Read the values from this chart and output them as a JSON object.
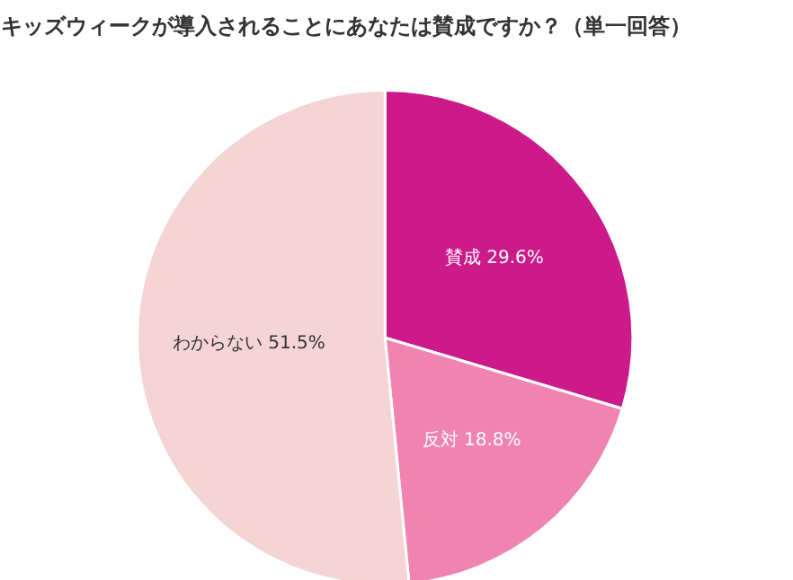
{
  "chart_data": {
    "type": "pie",
    "title": "キッズウィークが導入されることにあなたは賛成ですか？（単一回答）",
    "categories": [
      "賛成",
      "反対",
      "わからない"
    ],
    "values": [
      29.6,
      18.8,
      51.5
    ],
    "value_labels": [
      "29.6%",
      "18.8%",
      "51.5%"
    ],
    "colors": [
      "#cc1a8a",
      "#f083b0",
      "#f4d4d4"
    ]
  }
}
